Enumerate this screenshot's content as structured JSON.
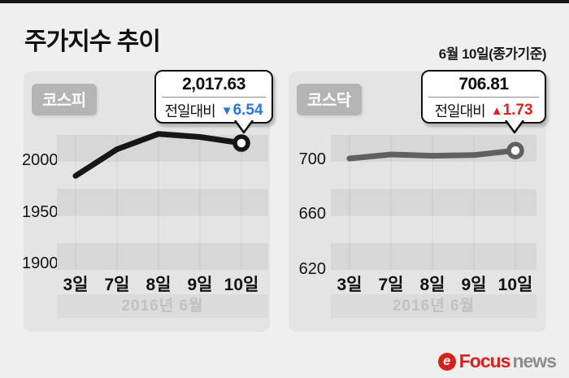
{
  "header": {
    "title": "주가지수 추이",
    "date_note": "6월 10일(종가기준)"
  },
  "chart_data": [
    {
      "type": "line",
      "title": "코스피",
      "categories": [
        "3일",
        "7일",
        "8일",
        "9일",
        "10일"
      ],
      "period_label": "2016년 6월",
      "values": [
        1985.8,
        2011.6,
        2026.5,
        2023.5,
        2017.63
      ],
      "yticks": [
        2000,
        1950,
        1900
      ],
      "ylim": [
        1894.6,
        2025.5
      ],
      "line_color": "#161616",
      "grid": "horizontal-bands",
      "legend": "none",
      "last_point": {
        "value_label": "2,017.63",
        "change_label": "전일대비",
        "change_arrow": "▼",
        "change_value": "6.54",
        "change_color": "#2b76d9",
        "direction": "down"
      }
    },
    {
      "type": "line",
      "title": "코스닥",
      "categories": [
        "3일",
        "7일",
        "8일",
        "9일",
        "10일"
      ],
      "period_label": "2016년 6월",
      "values": [
        701.0,
        704.0,
        703.0,
        703.5,
        706.81
      ],
      "yticks": [
        700,
        660,
        620
      ],
      "ylim": [
        619.8,
        718.2
      ],
      "line_color": "#606060",
      "grid": "horizontal-bands",
      "legend": "none",
      "last_point": {
        "value_label": "706.81",
        "change_label": "전일대비",
        "change_arrow": "▲",
        "change_value": "1.73",
        "change_color": "#e2231a",
        "direction": "up"
      }
    }
  ],
  "footer": {
    "brand_mark": "e",
    "brand_focus": "Focus",
    "brand_news": "news"
  }
}
